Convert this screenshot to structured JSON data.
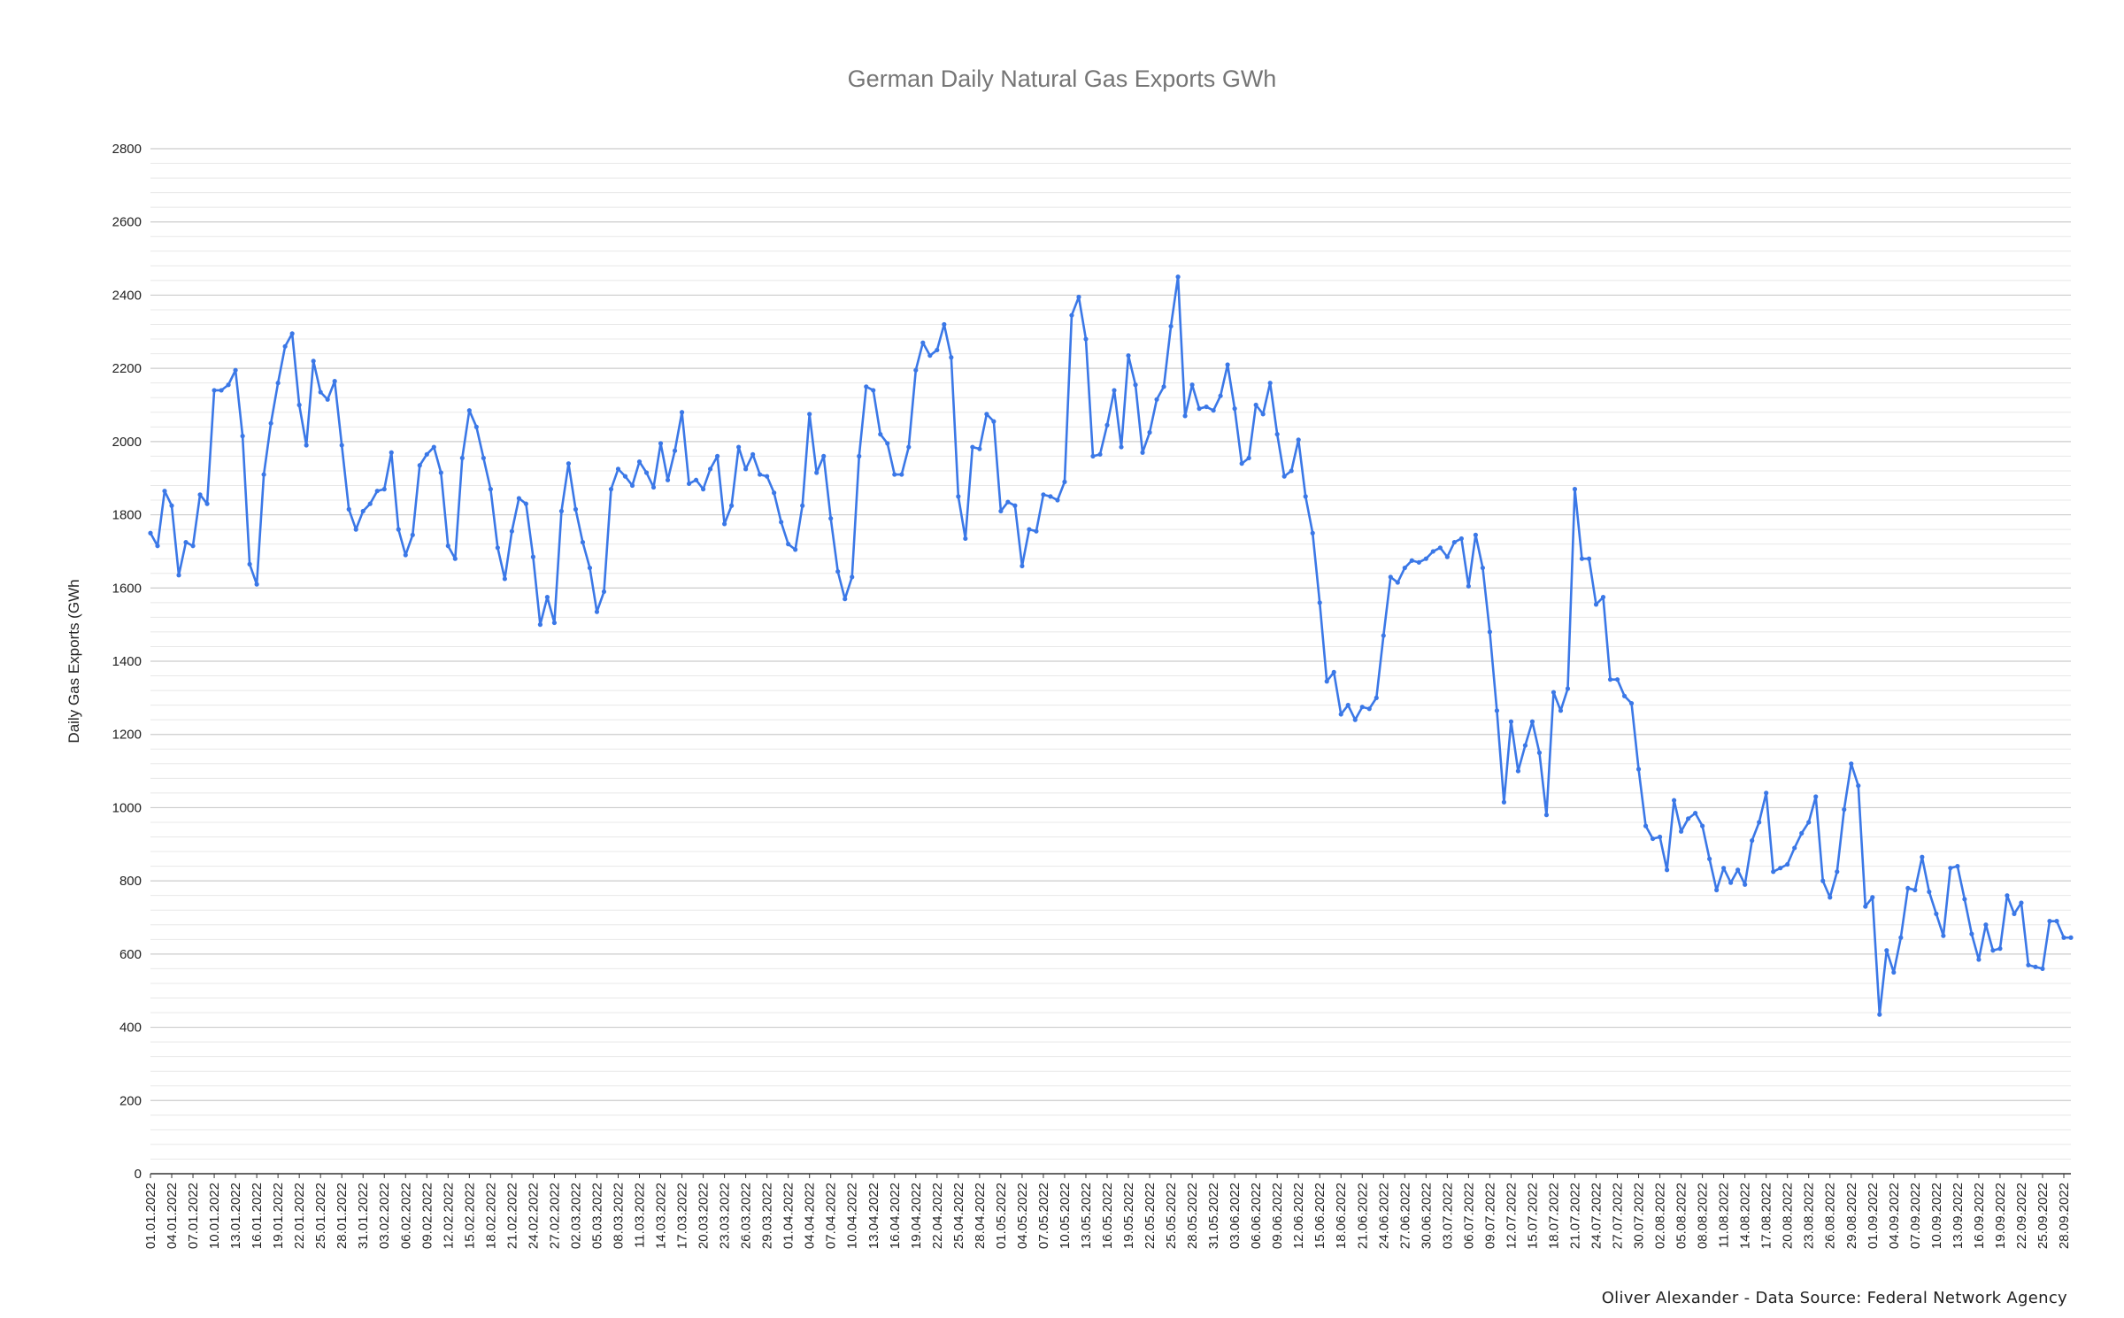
{
  "chart_data": {
    "type": "line",
    "title": "German Daily Natural Gas Exports GWh",
    "ylabel": "Daily Gas Exports (GWh",
    "xlabel": "",
    "ylim": [
      0,
      2800
    ],
    "y_ticks": [
      "0",
      "200",
      "400",
      "600",
      "800",
      "1000",
      "1200",
      "1400",
      "1600",
      "1800",
      "2000",
      "2200",
      "2400",
      "2600",
      "2800"
    ],
    "grid": "on",
    "x_tick_labels": [
      "01.01.2022",
      "04.01.2022",
      "07.01.2022",
      "10.01.2022",
      "13.01.2022",
      "16.01.2022",
      "19.01.2022",
      "22.01.2022",
      "25.01.2022",
      "28.01.2022",
      "31.01.2022",
      "03.02.2022",
      "06.02.2022",
      "09.02.2022",
      "12.02.2022",
      "15.02.2022",
      "18.02.2022",
      "21.02.2022",
      "24.02.2022",
      "27.02.2022",
      "02.03.2022",
      "05.03.2022",
      "08.03.2022",
      "11.03.2022",
      "14.03.2022",
      "17.03.2022",
      "20.03.2022",
      "23.03.2022",
      "26.03.2022",
      "29.03.2022",
      "01.04.2022",
      "04.04.2022",
      "07.04.2022",
      "10.04.2022",
      "13.04.2022",
      "16.04.2022",
      "19.04.2022",
      "22.04.2022",
      "25.04.2022",
      "28.04.2022",
      "01.05.2022",
      "04.05.2022",
      "07.05.2022",
      "10.05.2022",
      "13.05.2022",
      "16.05.2022",
      "19.05.2022",
      "22.05.2022",
      "25.05.2022",
      "28.05.2022",
      "31.05.2022",
      "03.06.2022",
      "06.06.2022",
      "09.06.2022",
      "12.06.2022",
      "15.06.2022",
      "18.06.2022",
      "21.06.2022",
      "24.06.2022",
      "27.06.2022",
      "30.06.2022",
      "03.07.2022",
      "06.07.2022",
      "09.07.2022",
      "12.07.2022",
      "15.07.2022",
      "18.07.2022",
      "21.07.2022",
      "24.07.2022",
      "27.07.2022",
      "30.07.2022",
      "02.08.2022",
      "05.08.2022",
      "08.08.2022",
      "11.08.2022",
      "14.08.2022",
      "17.08.2022",
      "20.08.2022",
      "23.08.2022",
      "26.08.2022",
      "29.08.2022",
      "01.09.2022",
      "04.09.2022",
      "07.09.2022",
      "10.09.2022",
      "13.09.2022",
      "16.09.2022",
      "19.09.2022",
      "22.09.2022",
      "25.09.2022",
      "28.09.2022"
    ],
    "series": [
      {
        "color": "#3b78e7",
        "values": [
          1750,
          1715,
          1865,
          1825,
          1635,
          1725,
          1715,
          1855,
          1830,
          2140,
          2140,
          2155,
          2195,
          2015,
          1665,
          1610,
          1910,
          2050,
          2160,
          2260,
          2295,
          2100,
          1990,
          2220,
          2135,
          2115,
          2165,
          1990,
          1815,
          1760,
          1810,
          1830,
          1865,
          1870,
          1970,
          1760,
          1690,
          1745,
          1935,
          1965,
          1985,
          1915,
          1715,
          1680,
          1955,
          2085,
          2040,
          1955,
          1870,
          1710,
          1625,
          1755,
          1845,
          1830,
          1685,
          1500,
          1575,
          1505,
          1810,
          1940,
          1815,
          1725,
          1655,
          1535,
          1590,
          1870,
          1925,
          1905,
          1880,
          1945,
          1915,
          1875,
          1995,
          1895,
          1975,
          2080,
          1885,
          1895,
          1870,
          1925,
          1960,
          1775,
          1825,
          1985,
          1925,
          1965,
          1910,
          1905,
          1860,
          1780,
          1720,
          1705,
          1825,
          2075,
          1915,
          1960,
          1790,
          1645,
          1570,
          1630,
          1960,
          2150,
          2140,
          2020,
          1995,
          1910,
          1910,
          1985,
          2195,
          2270,
          2235,
          2250,
          2320,
          2230,
          1850,
          1735,
          1985,
          1980,
          2075,
          2055,
          1810,
          1835,
          1825,
          1660,
          1760,
          1755,
          1855,
          1850,
          1840,
          1890,
          2345,
          2395,
          2280,
          1960,
          1965,
          2045,
          2140,
          1985,
          2235,
          2155,
          1970,
          2025,
          2115,
          2150,
          2315,
          2450,
          2070,
          2155,
          2090,
          2095,
          2085,
          2125,
          2210,
          2090,
          1940,
          1955,
          2100,
          2075,
          2160,
          2020,
          1905,
          1920,
          2005,
          1850,
          1750,
          1560,
          1345,
          1370,
          1255,
          1280,
          1240,
          1275,
          1270,
          1300,
          1470,
          1630,
          1615,
          1655,
          1675,
          1670,
          1680,
          1700,
          1710,
          1685,
          1725,
          1735,
          1605,
          1745,
          1655,
          1480,
          1265,
          1015,
          1235,
          1100,
          1170,
          1235,
          1150,
          980,
          1315,
          1265,
          1325,
          1870,
          1680,
          1680,
          1555,
          1575,
          1350,
          1350,
          1305,
          1285,
          1105,
          950,
          915,
          920,
          830,
          1020,
          935,
          970,
          985,
          950,
          860,
          775,
          835,
          795,
          830,
          790,
          910,
          960,
          1040,
          825,
          835,
          845,
          890,
          930,
          960,
          1030,
          800,
          755,
          825,
          995,
          1120,
          1060,
          730,
          755,
          435,
          610,
          550,
          645,
          780,
          775,
          865,
          770,
          710,
          650,
          835,
          840,
          750,
          655,
          585,
          680,
          610,
          615,
          760,
          710,
          740,
          570,
          565,
          560,
          690,
          690,
          645,
          645
        ]
      }
    ],
    "credit": "Oliver Alexander - Data Source: Federal Network Agency"
  }
}
